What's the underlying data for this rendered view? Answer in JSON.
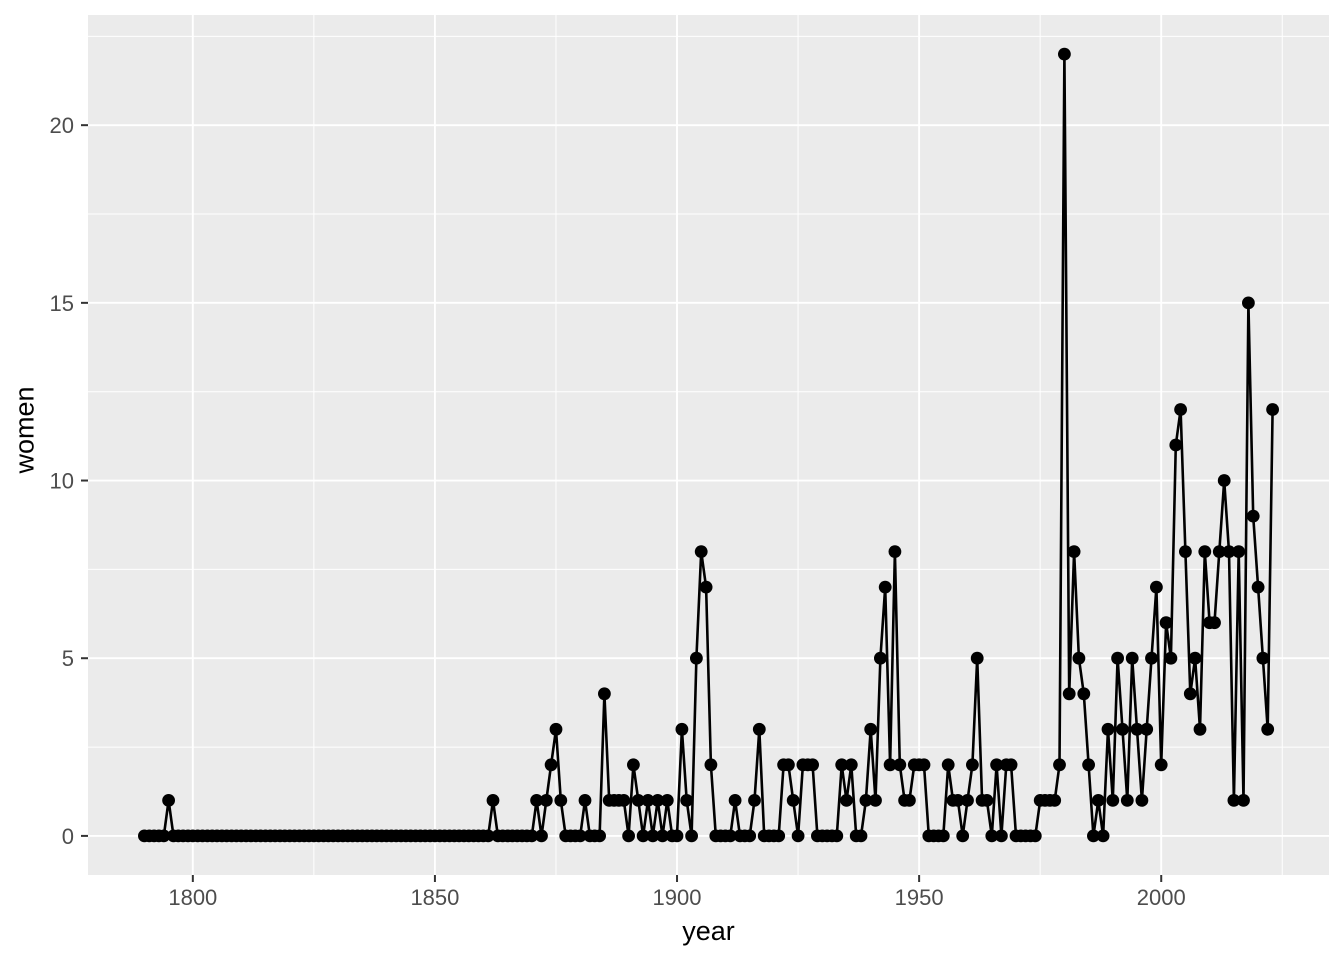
{
  "chart_data": {
    "type": "line",
    "title": "",
    "xlabel": "year",
    "ylabel": "women",
    "legend": "none",
    "grid": "on",
    "style": "ggplot2",
    "panel_bg_color": "#EBEBEB",
    "grid_color": "#FFFFFF",
    "line_color": "#000000",
    "point_color": "#000000",
    "tick_label_color": "#4D4D4D",
    "axis_title_color": "#000000",
    "tick_mark_color": "#333333",
    "x_ticks": [
      1800,
      1850,
      1900,
      1950,
      2000
    ],
    "y_ticks": [
      0,
      5,
      10,
      15,
      20
    ],
    "x_minor_ticks": [
      1825,
      1875,
      1925,
      1975,
      2025
    ],
    "y_minor_ticks": [
      2.5,
      7.5,
      12.5,
      17.5,
      22.5
    ],
    "xlim_data": [
      1790,
      2023
    ],
    "ylim_data": [
      0,
      22
    ],
    "expansion_fraction": 0.05,
    "x_start": 1790,
    "x_interval": 1,
    "values": [
      0,
      0,
      0,
      0,
      0,
      1,
      0,
      0,
      0,
      0,
      0,
      0,
      0,
      0,
      0,
      0,
      0,
      0,
      0,
      0,
      0,
      0,
      0,
      0,
      0,
      0,
      0,
      0,
      0,
      0,
      0,
      0,
      0,
      0,
      0,
      0,
      0,
      0,
      0,
      0,
      0,
      0,
      0,
      0,
      0,
      0,
      0,
      0,
      0,
      0,
      0,
      0,
      0,
      0,
      0,
      0,
      0,
      0,
      0,
      0,
      0,
      0,
      0,
      0,
      0,
      0,
      0,
      0,
      0,
      0,
      0,
      0,
      1,
      0,
      0,
      0,
      0,
      0,
      0,
      0,
      0,
      1,
      0,
      1,
      2,
      3,
      1,
      0,
      0,
      0,
      0,
      1,
      0,
      0,
      0,
      4,
      1,
      1,
      1,
      1,
      0,
      2,
      1,
      0,
      1,
      0,
      1,
      0,
      1,
      0,
      0,
      3,
      1,
      0,
      5,
      8,
      7,
      2,
      0,
      0,
      0,
      0,
      1,
      0,
      0,
      0,
      1,
      3,
      0,
      0,
      0,
      0,
      2,
      2,
      1,
      0,
      2,
      2,
      2,
      0,
      0,
      0,
      0,
      0,
      2,
      1,
      2,
      0,
      0,
      1,
      3,
      1,
      5,
      7,
      2,
      8,
      2,
      1,
      1,
      2,
      2,
      2,
      0,
      0,
      0,
      0,
      2,
      1,
      1,
      0,
      1,
      2,
      5,
      1,
      1,
      0,
      2,
      0,
      2,
      2,
      0,
      0,
      0,
      0,
      0,
      1,
      1,
      1,
      1,
      2,
      22,
      4,
      8,
      5,
      4,
      2,
      0,
      1,
      0,
      3,
      1,
      5,
      3,
      1,
      5,
      3,
      1,
      3,
      5,
      7,
      2,
      6,
      5,
      11,
      12,
      8,
      4,
      5,
      3,
      8,
      6,
      6,
      8,
      10,
      8,
      1,
      8,
      1,
      15,
      9,
      7,
      5,
      3,
      12
    ]
  }
}
